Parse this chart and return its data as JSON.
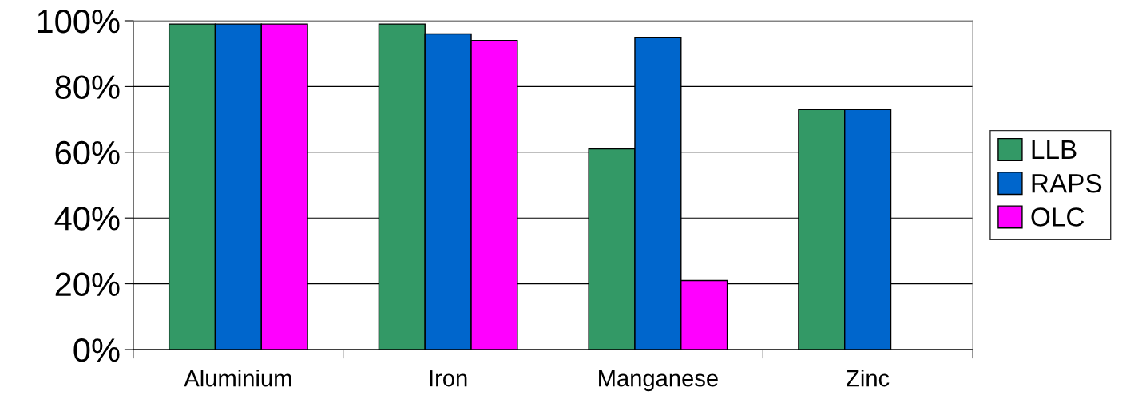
{
  "chart_data": {
    "type": "bar",
    "categories": [
      "Aluminium",
      "Iron",
      "Manganese",
      "Zinc"
    ],
    "series": [
      {
        "name": "LLB",
        "color": "#339966",
        "values": [
          99,
          99,
          61,
          73
        ]
      },
      {
        "name": "RAPS",
        "color": "#0066cc",
        "values": [
          99,
          96,
          95,
          73
        ]
      },
      {
        "name": "OLC",
        "color": "#ff00ff",
        "values": [
          99,
          94,
          21,
          null
        ]
      }
    ],
    "ylim": [
      0,
      100
    ],
    "yticks": [
      {
        "value": 0,
        "label": "0%"
      },
      {
        "value": 20,
        "label": "20%"
      },
      {
        "value": 40,
        "label": "40%"
      },
      {
        "value": 60,
        "label": "60%"
      },
      {
        "value": 80,
        "label": "80%"
      },
      {
        "value": 100,
        "label": "100%"
      }
    ],
    "grid": "y",
    "legend": "right"
  }
}
